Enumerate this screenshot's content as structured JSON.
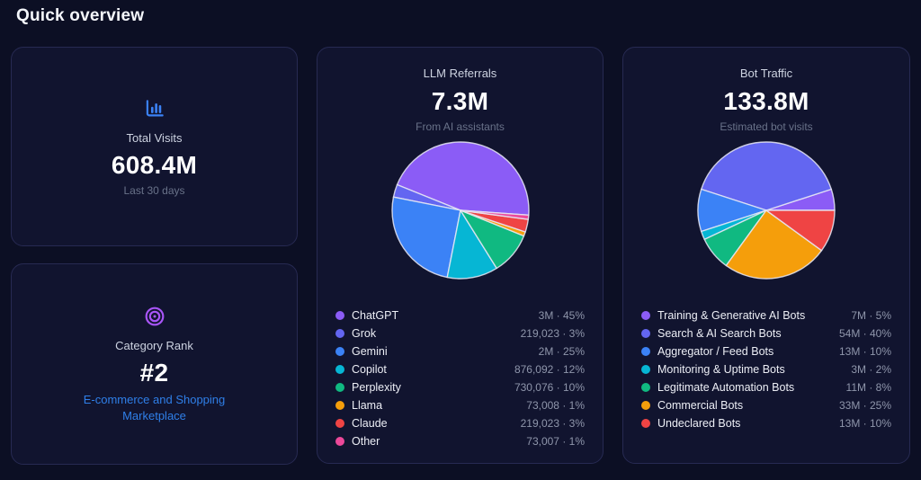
{
  "page": {
    "title": "Quick overview"
  },
  "colors": {
    "background": "#0c0f24",
    "card_background": "#11142f",
    "card_border": "#272a52",
    "accent_blue": "#3b82f6",
    "accent_purple": "#a855f7",
    "link_blue": "#2f7fe8"
  },
  "cards": {
    "total_visits": {
      "icon": "bar-chart-icon",
      "label": "Total Visits",
      "value": "608.4M",
      "caption": "Last 30 days"
    },
    "category_rank": {
      "icon": "target-icon",
      "label": "Category Rank",
      "value": "#2",
      "link": "E-commerce and Shopping Marketplace"
    },
    "llm_referrals": {
      "title": "LLM Referrals",
      "value": "7.3M",
      "caption": "From AI assistants"
    },
    "bot_traffic": {
      "title": "Bot Traffic",
      "value": "133.8M",
      "caption": "Estimated bot visits"
    }
  },
  "chart_data": [
    {
      "type": "pie",
      "title": "LLM Referrals",
      "center_total": "7.3M",
      "legend_position": "bottom",
      "direction": "counterclockwise",
      "start_angle_deg": -4,
      "slices": [
        {
          "label": "ChatGPT",
          "value_text": "3M",
          "percent": 45,
          "display": "3M · 45%",
          "color": "#8b5cf6"
        },
        {
          "label": "Grok",
          "value_text": "219,023",
          "percent": 3,
          "display": "219,023 · 3%",
          "color": "#6366f1"
        },
        {
          "label": "Gemini",
          "value_text": "2M",
          "percent": 25,
          "display": "2M · 25%",
          "color": "#3b82f6"
        },
        {
          "label": "Copilot",
          "value_text": "876,092",
          "percent": 12,
          "display": "876,092 · 12%",
          "color": "#06b6d4"
        },
        {
          "label": "Perplexity",
          "value_text": "730,076",
          "percent": 10,
          "display": "730,076 · 10%",
          "color": "#10b981"
        },
        {
          "label": "Llama",
          "value_text": "73,008",
          "percent": 1,
          "display": "73,008 · 1%",
          "color": "#f59e0b"
        },
        {
          "label": "Claude",
          "value_text": "219,023",
          "percent": 3,
          "display": "219,023 · 3%",
          "color": "#ef4444"
        },
        {
          "label": "Other",
          "value_text": "73,007",
          "percent": 1,
          "display": "73,007 · 1%",
          "color": "#ec4899"
        }
      ]
    },
    {
      "type": "pie",
      "title": "Bot Traffic",
      "center_total": "133.8M",
      "legend_position": "bottom",
      "direction": "counterclockwise",
      "start_angle_deg": 0,
      "slices": [
        {
          "label": "Training & Generative AI Bots",
          "value_text": "7M",
          "percent": 5,
          "display": "7M · 5%",
          "color": "#8b5cf6"
        },
        {
          "label": "Search & AI Search Bots",
          "value_text": "54M",
          "percent": 40,
          "display": "54M · 40%",
          "color": "#6366f1"
        },
        {
          "label": "Aggregator / Feed Bots",
          "value_text": "13M",
          "percent": 10,
          "display": "13M · 10%",
          "color": "#3b82f6"
        },
        {
          "label": "Monitoring & Uptime Bots",
          "value_text": "3M",
          "percent": 2,
          "display": "3M · 2%",
          "color": "#06b6d4"
        },
        {
          "label": "Legitimate Automation Bots",
          "value_text": "11M",
          "percent": 8,
          "display": "11M · 8%",
          "color": "#10b981"
        },
        {
          "label": "Commercial Bots",
          "value_text": "33M",
          "percent": 25,
          "display": "33M · 25%",
          "color": "#f59e0b"
        },
        {
          "label": "Undeclared Bots",
          "value_text": "13M",
          "percent": 10,
          "display": "13M · 10%",
          "color": "#ef4444"
        }
      ]
    }
  ]
}
